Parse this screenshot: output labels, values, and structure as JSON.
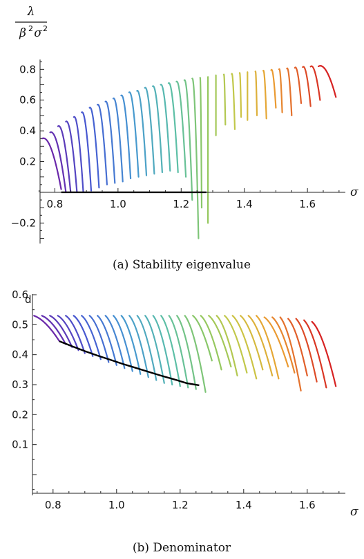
{
  "chart_data": [
    {
      "type": "line",
      "caption": "(a) Stability eigenvalue",
      "ylabel_num": "λ",
      "ylabel_den_beta": "β",
      "ylabel_den_sigma": "σ",
      "ylabel_den_exp": "2",
      "xlabel": "σ",
      "xlim": [
        0.74,
        1.72
      ],
      "ylim": [
        -0.32,
        0.86
      ],
      "xticks": [
        0.8,
        1.0,
        1.2,
        1.4,
        1.6
      ],
      "xtick_labels": [
        "0.8",
        "1.0",
        "1.2",
        "1.4",
        "1.6"
      ],
      "yticks": [
        -0.2,
        0.2,
        0.4,
        0.6,
        0.8
      ],
      "ytick_labels": [
        "−0.2",
        "0.2",
        "0.4",
        "0.6",
        "0.8"
      ],
      "grid": false,
      "curve_family": {
        "count": 36,
        "colormap": "rainbow (purple to red)",
        "start_x": [
          0.76,
          0.785,
          0.81,
          0.835,
          0.86,
          0.885,
          0.91,
          0.935,
          0.96,
          0.985,
          1.01,
          1.035,
          1.06,
          1.085,
          1.11,
          1.135,
          1.16,
          1.185,
          1.21,
          1.235,
          1.26,
          1.285,
          1.31,
          1.335,
          1.36,
          1.385,
          1.41,
          1.435,
          1.46,
          1.485,
          1.51,
          1.535,
          1.56,
          1.585,
          1.61,
          1.635
        ],
        "start_y": [
          0.35,
          0.39,
          0.43,
          0.46,
          0.49,
          0.52,
          0.55,
          0.57,
          0.59,
          0.61,
          0.63,
          0.65,
          0.66,
          0.68,
          0.69,
          0.7,
          0.71,
          0.72,
          0.73,
          0.74,
          0.745,
          0.75,
          0.76,
          0.765,
          0.77,
          0.775,
          0.78,
          0.785,
          0.79,
          0.795,
          0.8,
          0.805,
          0.81,
          0.815,
          0.818,
          0.82
        ],
        "end_x": [
          0.82,
          0.835,
          0.85,
          0.87,
          0.89,
          0.915,
          0.94,
          0.965,
          0.99,
          1.015,
          1.04,
          1.065,
          1.09,
          1.115,
          1.14,
          1.165,
          1.19,
          1.215,
          1.235,
          1.255,
          1.265,
          1.285,
          1.31,
          1.34,
          1.37,
          1.39,
          1.41,
          1.44,
          1.47,
          1.5,
          1.52,
          1.55,
          1.58,
          1.61,
          1.64,
          1.69
        ],
        "end_y": [
          0.02,
          0.0,
          0.0,
          0.0,
          0.0,
          0.01,
          0.03,
          0.05,
          0.06,
          0.07,
          0.09,
          0.1,
          0.11,
          0.12,
          0.13,
          0.14,
          0.13,
          0.1,
          -0.05,
          -0.3,
          -0.1,
          -0.2,
          0.37,
          0.44,
          0.41,
          0.49,
          0.47,
          0.5,
          0.48,
          0.55,
          0.52,
          0.5,
          0.58,
          0.56,
          0.6,
          0.62
        ]
      },
      "black_curve": {
        "x": [
          0.82,
          1.28
        ],
        "y": [
          0.0,
          0.0
        ]
      }
    },
    {
      "type": "line",
      "caption": "(b) Denominator",
      "ylabel": "d",
      "xlabel": "σ",
      "xlim": [
        0.72,
        1.72
      ],
      "ylim": [
        -0.06,
        0.6
      ],
      "xticks": [
        0.8,
        1.0,
        1.2,
        1.4,
        1.6
      ],
      "xtick_labels": [
        "0.8",
        "1.0",
        "1.2",
        "1.4",
        "1.6"
      ],
      "yticks": [
        0.1,
        0.2,
        0.3,
        0.4,
        0.5,
        0.6
      ],
      "ytick_labels": [
        "0.1",
        "0.2",
        "0.3",
        "0.4",
        "0.5",
        "0.6"
      ],
      "grid": false,
      "curve_family": {
        "count": 36,
        "colormap": "rainbow (purple to red)",
        "start_x": [
          0.74,
          0.765,
          0.79,
          0.815,
          0.84,
          0.865,
          0.89,
          0.915,
          0.94,
          0.965,
          0.99,
          1.015,
          1.04,
          1.065,
          1.09,
          1.115,
          1.14,
          1.165,
          1.19,
          1.215,
          1.24,
          1.265,
          1.29,
          1.315,
          1.34,
          1.365,
          1.39,
          1.415,
          1.44,
          1.465,
          1.49,
          1.515,
          1.54,
          1.565,
          1.59,
          1.615
        ],
        "start_y": [
          0.53,
          0.53,
          0.53,
          0.53,
          0.53,
          0.53,
          0.53,
          0.53,
          0.53,
          0.53,
          0.53,
          0.53,
          0.53,
          0.53,
          0.53,
          0.53,
          0.53,
          0.53,
          0.53,
          0.53,
          0.53,
          0.53,
          0.53,
          0.53,
          0.53,
          0.53,
          0.53,
          0.53,
          0.53,
          0.525,
          0.525,
          0.525,
          0.52,
          0.52,
          0.515,
          0.51
        ],
        "end_x": [
          0.82,
          0.84,
          0.86,
          0.88,
          0.9,
          0.925,
          0.95,
          0.975,
          1.0,
          1.025,
          1.05,
          1.075,
          1.1,
          1.125,
          1.15,
          1.175,
          1.2,
          1.225,
          1.25,
          1.28,
          1.3,
          1.33,
          1.36,
          1.38,
          1.41,
          1.44,
          1.46,
          1.49,
          1.51,
          1.54,
          1.56,
          1.58,
          1.6,
          1.63,
          1.66,
          1.69
        ],
        "end_y": [
          0.445,
          0.435,
          0.425,
          0.415,
          0.405,
          0.395,
          0.385,
          0.375,
          0.365,
          0.355,
          0.345,
          0.335,
          0.325,
          0.315,
          0.305,
          0.3,
          0.295,
          0.29,
          0.285,
          0.275,
          0.38,
          0.35,
          0.36,
          0.33,
          0.34,
          0.32,
          0.35,
          0.33,
          0.32,
          0.36,
          0.34,
          0.28,
          0.33,
          0.31,
          0.29,
          0.295
        ]
      },
      "black_curve": {
        "x": [
          0.82,
          0.86,
          0.9,
          0.94,
          0.98,
          1.02,
          1.06,
          1.1,
          1.14,
          1.18,
          1.22,
          1.26
        ],
        "y": [
          0.445,
          0.428,
          0.412,
          0.397,
          0.383,
          0.369,
          0.356,
          0.343,
          0.33,
          0.318,
          0.305,
          0.298
        ]
      }
    }
  ]
}
